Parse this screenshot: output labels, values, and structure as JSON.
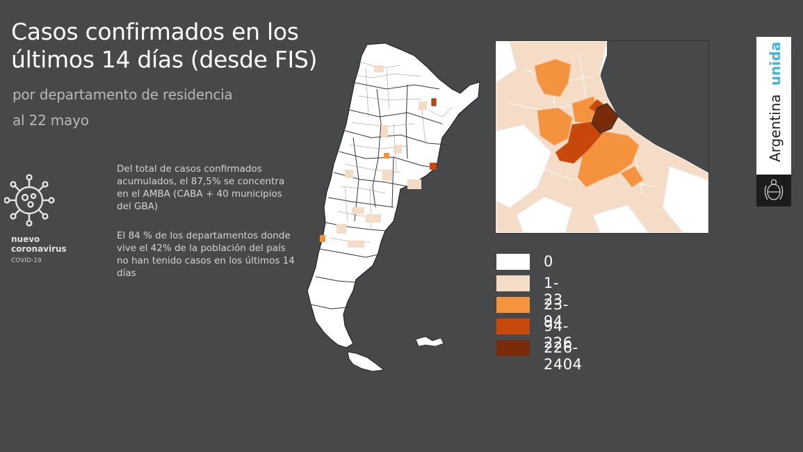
{
  "header": {
    "title": "Casos confirmados en los últimos 14 días (desde FIS)",
    "subtitle": "por departamento de residencia",
    "date": "al 22 mayo"
  },
  "info": {
    "paragraph1": "Del total de casos confirmados acumulados, el 87,5% se concentra en el AMBA (CABA + 40 municipios del GBA)",
    "paragraph2": "El 84 % de los departamentos donde vive el 42% de la población del país no han tenido casos en los últimos 14 días"
  },
  "campaign": {
    "label_line1": "nuevo",
    "label_line2": "coronavirus",
    "sub": "COVID-19",
    "icon": "virus-icon"
  },
  "brand": {
    "word1": "Argentina",
    "word2": "unida",
    "accent_color": "#3fb6e0",
    "seal_icon": "coat-of-arms-icon"
  },
  "legend": {
    "items": [
      {
        "label": "0",
        "color": "#ffffff"
      },
      {
        "label": "1-23",
        "color": "#f4dcc6"
      },
      {
        "label": "23-94",
        "color": "#f5923e"
      },
      {
        "label": "94-226",
        "color": "#c8480c"
      },
      {
        "label": "226-2404",
        "color": "#7a2c0a"
      }
    ]
  },
  "map": {
    "background_color": "#47484a",
    "boundary_color": "#222222"
  }
}
